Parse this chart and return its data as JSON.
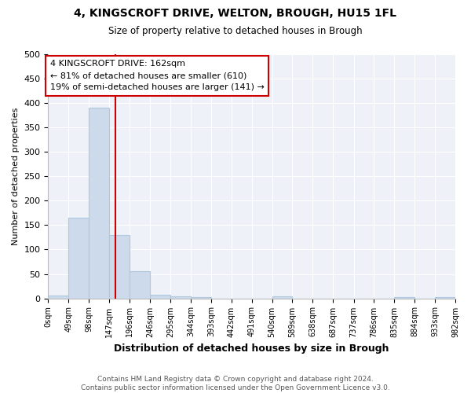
{
  "title1": "4, KINGSCROFT DRIVE, WELTON, BROUGH, HU15 1FL",
  "title2": "Size of property relative to detached houses in Brough",
  "xlabel": "Distribution of detached houses by size in Brough",
  "ylabel": "Number of detached properties",
  "bin_edges": [
    0,
    49,
    98,
    147,
    196,
    246,
    295,
    344,
    393,
    442,
    491,
    540,
    589,
    638,
    687,
    737,
    786,
    835,
    884,
    933,
    982
  ],
  "bar_heights": [
    5,
    165,
    390,
    130,
    55,
    8,
    4,
    3,
    0,
    0,
    0,
    4,
    0,
    0,
    0,
    0,
    0,
    3,
    0,
    3
  ],
  "bar_color": "#ccdaeb",
  "bar_edgecolor": "#aec8e0",
  "vline_x": 162,
  "vline_color": "#cc0000",
  "annotation_title": "4 KINGSCROFT DRIVE: 162sqm",
  "annotation_line1": "← 81% of detached houses are smaller (610)",
  "annotation_line2": "19% of semi-detached houses are larger (141) →",
  "annotation_box_edgecolor": "#cc0000",
  "ylim": [
    0,
    500
  ],
  "yticks": [
    0,
    50,
    100,
    150,
    200,
    250,
    300,
    350,
    400,
    450,
    500
  ],
  "footnote": "Contains HM Land Registry data © Crown copyright and database right 2024.\nContains public sector information licensed under the Open Government Licence v3.0.",
  "bg_color": "#eef2f8",
  "tick_labels": [
    "0sqm",
    "49sqm",
    "98sqm",
    "147sqm",
    "196sqm",
    "246sqm",
    "295sqm",
    "344sqm",
    "393sqm",
    "442sqm",
    "491sqm",
    "540sqm",
    "589sqm",
    "638sqm",
    "687sqm",
    "737sqm",
    "786sqm",
    "835sqm",
    "884sqm",
    "933sqm",
    "982sqm"
  ]
}
